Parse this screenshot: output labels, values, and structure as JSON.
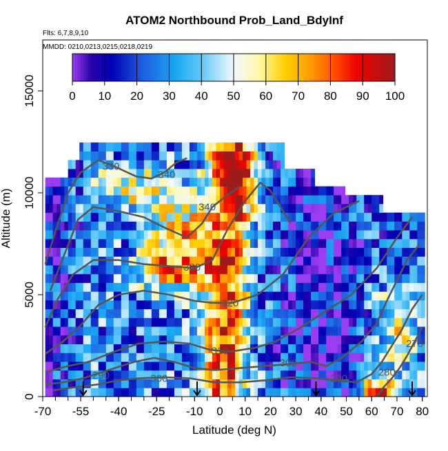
{
  "chart_data": {
    "type": "heatmap",
    "title": "ATOM2 Northbound Prob_Land_BdyInf",
    "subtitle_flights": "Flts: 6,7,8,9,10",
    "subtitle_dates": "MMDD: 0210,0213,0215,0218,0219",
    "xlabel": "Latitude (deg N)",
    "ylabel": "Altitude (m)",
    "xlim": [
      -70,
      82
    ],
    "ylim": [
      0,
      17500
    ],
    "x_ticks": [
      {
        "value": -70,
        "label": "-70"
      },
      {
        "value": -55,
        "label": "-55"
      },
      {
        "value": -40,
        "label": "-40"
      },
      {
        "value": -25,
        "label": "-25"
      },
      {
        "value": -10,
        "label": "-10"
      },
      {
        "value": 0,
        "label": "0"
      },
      {
        "value": 10,
        "label": "10"
      },
      {
        "value": 20,
        "label": "20"
      },
      {
        "value": 30,
        "label": "30"
      },
      {
        "value": 40,
        "label": "40"
      },
      {
        "value": 50,
        "label": "50"
      },
      {
        "value": 60,
        "label": "60"
      },
      {
        "value": 70,
        "label": "70"
      },
      {
        "value": 80,
        "label": "80"
      }
    ],
    "y_ticks": [
      {
        "value": 0,
        "label": "0"
      },
      {
        "value": 5000,
        "label": "5000"
      },
      {
        "value": 10000,
        "label": "10000"
      },
      {
        "value": 15000,
        "label": "15000"
      }
    ],
    "colorbar": {
      "min": 0,
      "max": 100,
      "tick_values": [
        0,
        10,
        20,
        30,
        40,
        50,
        60,
        70,
        80,
        90,
        100
      ],
      "tick_labels": [
        "0",
        "10",
        "20",
        "30",
        "40",
        "50",
        "60",
        "70",
        "80",
        "90",
        "100"
      ],
      "stops": [
        {
          "value": 0,
          "color": "#9a3cf0"
        },
        {
          "value": 6,
          "color": "#2a00a8"
        },
        {
          "value": 12,
          "color": "#0000b4"
        },
        {
          "value": 22,
          "color": "#1f5ee0"
        },
        {
          "value": 32,
          "color": "#1aa8f2"
        },
        {
          "value": 40,
          "color": "#62c8fa"
        },
        {
          "value": 50,
          "color": "#f2f8fb"
        },
        {
          "value": 58,
          "color": "#fff7a6"
        },
        {
          "value": 66,
          "color": "#ffd000"
        },
        {
          "value": 74,
          "color": "#ff9a00"
        },
        {
          "value": 82,
          "color": "#ff4800"
        },
        {
          "value": 88,
          "color": "#f00000"
        },
        {
          "value": 100,
          "color": "#9e1b1b"
        }
      ]
    },
    "flight_arrows_lat": [
      -54,
      -9,
      38,
      76
    ],
    "contour_color": "#555555",
    "contour_labels": [
      {
        "text": "330",
        "lat": -43,
        "alt": 11300
      },
      {
        "text": "340",
        "lat": -21,
        "alt": 10900
      },
      {
        "text": "340",
        "lat": -5,
        "alt": 9300
      },
      {
        "text": "330",
        "lat": -11,
        "alt": 6350
      },
      {
        "text": "320",
        "lat": 4,
        "alt": 4600
      },
      {
        "text": "310",
        "lat": 0,
        "alt": 2250
      },
      {
        "text": "300",
        "lat": -24,
        "alt": 900
      },
      {
        "text": "300",
        "lat": 27,
        "alt": 1650
      },
      {
        "text": "290",
        "lat": -47,
        "alt": 1050
      },
      {
        "text": "290",
        "lat": 47,
        "alt": 900
      },
      {
        "text": "280",
        "lat": 66,
        "alt": 1200
      },
      {
        "text": "270",
        "lat": 77,
        "alt": 2600
      }
    ]
  }
}
